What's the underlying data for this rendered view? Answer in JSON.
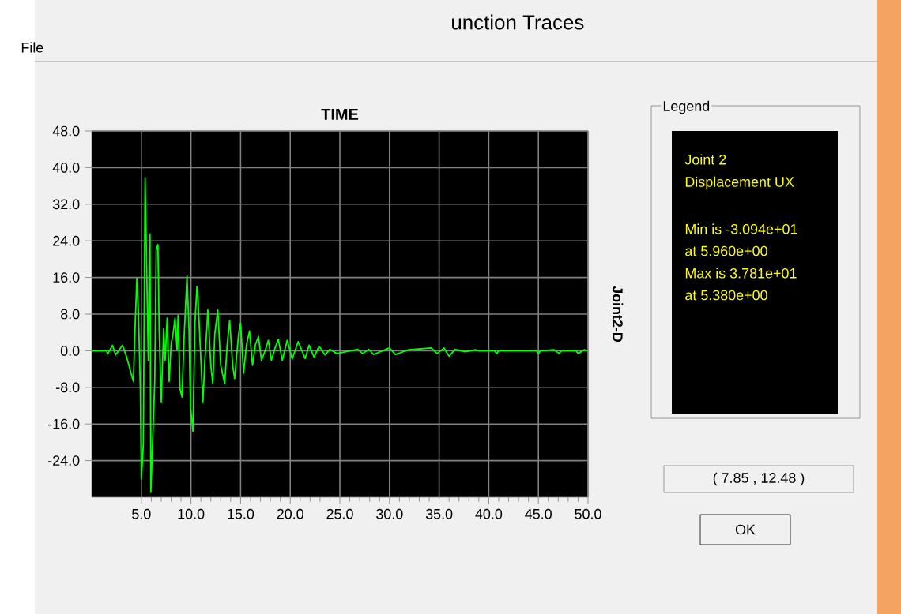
{
  "chart_data": {
    "type": "line",
    "title": "TIME",
    "ylabel": "Joint2-D",
    "x": [
      0,
      1.5,
      1.6,
      2.1,
      2.4,
      3.1,
      3.5,
      3.9,
      4.2,
      4.4,
      4.55,
      4.7,
      4.9,
      5.0,
      5.2,
      5.38,
      5.7,
      5.87,
      5.96,
      6.35,
      6.5,
      6.67,
      6.8,
      7.0,
      7.25,
      7.4,
      7.6,
      7.8,
      8.0,
      8.2,
      8.4,
      8.6,
      8.7,
      8.9,
      9.1,
      9.3,
      9.5,
      9.6,
      9.8,
      9.95,
      10.2,
      10.4,
      10.6,
      10.7,
      10.95,
      11.2,
      11.4,
      11.6,
      11.7,
      12.0,
      12.2,
      12.4,
      12.7,
      13.0,
      13.4,
      13.65,
      13.9,
      14.2,
      14.4,
      14.8,
      15.0,
      15.3,
      15.6,
      15.9,
      16.2,
      16.5,
      16.8,
      17.1,
      17.5,
      17.8,
      18.1,
      18.5,
      18.8,
      19.2,
      19.7,
      20.2,
      20.8,
      21.5,
      21.9,
      22.4,
      22.9,
      23.5,
      24.0,
      24.7,
      26.8,
      27.3,
      27.9,
      28.4,
      30.0,
      30.6,
      31.9,
      34.2,
      34.8,
      35.5,
      36.0,
      36.6,
      37.6,
      38.7,
      39.0,
      40.6,
      40.8,
      41.0,
      44.8,
      45.0,
      45.2,
      46.6,
      47.1,
      47.3,
      48.8,
      49.0,
      49.6,
      50
    ],
    "series": [
      {
        "color": "#00ff00",
        "values": [
          0,
          0,
          -0.7,
          1.2,
          -0.9,
          1.2,
          -1.2,
          -4.4,
          -6.7,
          7.1,
          15.8,
          8.9,
          -8.4,
          -28,
          -20.5,
          37.81,
          -2.1,
          25.5,
          -30.94,
          -6.7,
          22.1,
          23.2,
          4.3,
          -11.3,
          4.8,
          -2.1,
          7.1,
          -6.7,
          1.4,
          3.7,
          7.1,
          0.2,
          7.7,
          -8.4,
          -10.1,
          2.5,
          11.7,
          16.3,
          4.8,
          -12.4,
          -17.6,
          6.0,
          14.0,
          11.7,
          0.2,
          -11.3,
          -2.1,
          4.8,
          8.9,
          -3.2,
          -7.2,
          3.7,
          8.9,
          -3.2,
          -7.2,
          1.4,
          6.6,
          -3.2,
          -6.1,
          3.7,
          6.0,
          -4.9,
          1.4,
          4.3,
          -3.2,
          1.4,
          3.1,
          -2.1,
          0.2,
          2.3,
          -2.1,
          0.8,
          2.5,
          -2.1,
          2.3,
          -1.8,
          2.0,
          -1.7,
          1.2,
          -1.4,
          1.0,
          -0.9,
          0.3,
          -0.6,
          0.3,
          -0.6,
          0.3,
          -0.8,
          0.6,
          -0.8,
          0.2,
          0.6,
          -0.6,
          0.6,
          -1.2,
          0.3,
          -0.2,
          0.2,
          0,
          0,
          -0.6,
          0,
          0,
          -0.6,
          0,
          0.2,
          -0.6,
          0,
          0,
          -0.6,
          0.2,
          0
        ]
      }
    ],
    "xlim": [
      0,
      50
    ],
    "ylim": [
      -32,
      48
    ],
    "xticks": [
      {
        "value": 5,
        "label": "5.0"
      },
      {
        "value": 10,
        "label": "10.0"
      },
      {
        "value": 15,
        "label": "15.0"
      },
      {
        "value": 20,
        "label": "20.0"
      },
      {
        "value": 25,
        "label": "25.0"
      },
      {
        "value": 30,
        "label": "30.0"
      },
      {
        "value": 35,
        "label": "35.0"
      },
      {
        "value": 40,
        "label": "40.0"
      },
      {
        "value": 45,
        "label": "45.0"
      },
      {
        "value": 50,
        "label": "50.0"
      }
    ],
    "yticks": [
      {
        "value": -24,
        "label": "-24.0"
      },
      {
        "value": -16,
        "label": "-16.0"
      },
      {
        "value": -8,
        "label": "-8.0"
      },
      {
        "value": 0,
        "label": "0.0"
      },
      {
        "value": 8,
        "label": "8.0"
      },
      {
        "value": 16,
        "label": "16.0"
      },
      {
        "value": 24,
        "label": "24.0"
      },
      {
        "value": 32,
        "label": "32.0"
      },
      {
        "value": 40,
        "label": "40.0"
      },
      {
        "value": 48,
        "label": "48.0"
      }
    ],
    "grid": true,
    "marker": "none",
    "line_style": "solid",
    "annotations": [
      "unction Traces",
      "File",
      "Legend",
      "Joint 2",
      "Displacement  UX",
      "Min is -3.094e+01",
      "at 5.960e+00",
      "Max is 3.781e+01",
      "at 5.380e+00",
      "( 7.85 , 12.48 )",
      "OK"
    ]
  }
}
